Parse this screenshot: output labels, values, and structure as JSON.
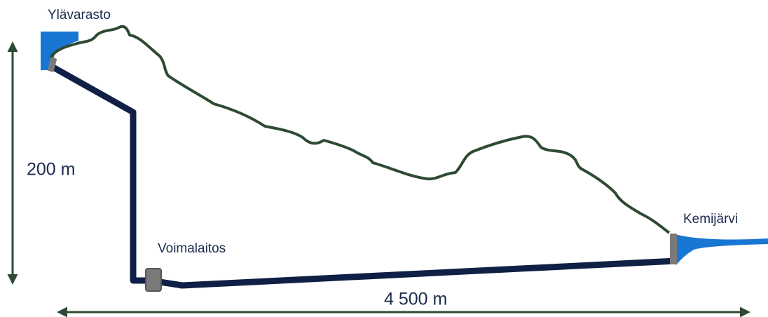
{
  "reservoirs": {
    "upper": {
      "label": "Ylävarasto"
    },
    "lower": {
      "label": "Kemijärvi"
    }
  },
  "power_station": {
    "label": "Voimalaitos"
  },
  "dimensions": {
    "height": "200 m",
    "length": "4 500 m"
  }
}
